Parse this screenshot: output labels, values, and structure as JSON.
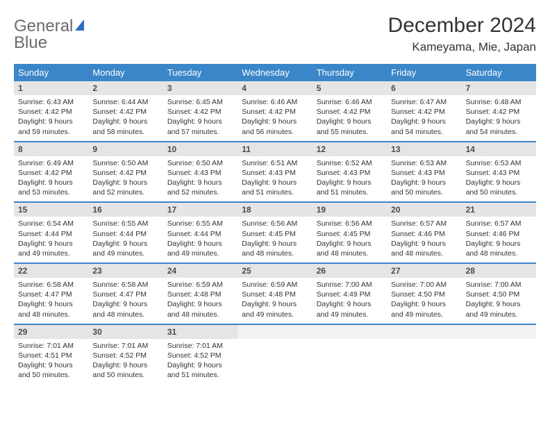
{
  "brand": {
    "word1": "General",
    "word2": "Blue",
    "sail_color": "#2b6fbd"
  },
  "header": {
    "month_title": "December 2024",
    "location": "Kameyama, Mie, Japan"
  },
  "calendar": {
    "day_headers": [
      "Sunday",
      "Monday",
      "Tuesday",
      "Wednesday",
      "Thursday",
      "Friday",
      "Saturday"
    ],
    "header_bg": "#3b86c8",
    "header_fg": "#ffffff",
    "row_border_color": "#3b86c8",
    "daynum_bg": "#e5e5e5",
    "weeks": [
      [
        {
          "day": "1",
          "sunrise": "Sunrise: 6:43 AM",
          "sunset": "Sunset: 4:42 PM",
          "daylight": "Daylight: 9 hours and 59 minutes."
        },
        {
          "day": "2",
          "sunrise": "Sunrise: 6:44 AM",
          "sunset": "Sunset: 4:42 PM",
          "daylight": "Daylight: 9 hours and 58 minutes."
        },
        {
          "day": "3",
          "sunrise": "Sunrise: 6:45 AM",
          "sunset": "Sunset: 4:42 PM",
          "daylight": "Daylight: 9 hours and 57 minutes."
        },
        {
          "day": "4",
          "sunrise": "Sunrise: 6:46 AM",
          "sunset": "Sunset: 4:42 PM",
          "daylight": "Daylight: 9 hours and 56 minutes."
        },
        {
          "day": "5",
          "sunrise": "Sunrise: 6:46 AM",
          "sunset": "Sunset: 4:42 PM",
          "daylight": "Daylight: 9 hours and 55 minutes."
        },
        {
          "day": "6",
          "sunrise": "Sunrise: 6:47 AM",
          "sunset": "Sunset: 4:42 PM",
          "daylight": "Daylight: 9 hours and 54 minutes."
        },
        {
          "day": "7",
          "sunrise": "Sunrise: 6:48 AM",
          "sunset": "Sunset: 4:42 PM",
          "daylight": "Daylight: 9 hours and 54 minutes."
        }
      ],
      [
        {
          "day": "8",
          "sunrise": "Sunrise: 6:49 AM",
          "sunset": "Sunset: 4:42 PM",
          "daylight": "Daylight: 9 hours and 53 minutes."
        },
        {
          "day": "9",
          "sunrise": "Sunrise: 6:50 AM",
          "sunset": "Sunset: 4:42 PM",
          "daylight": "Daylight: 9 hours and 52 minutes."
        },
        {
          "day": "10",
          "sunrise": "Sunrise: 6:50 AM",
          "sunset": "Sunset: 4:43 PM",
          "daylight": "Daylight: 9 hours and 52 minutes."
        },
        {
          "day": "11",
          "sunrise": "Sunrise: 6:51 AM",
          "sunset": "Sunset: 4:43 PM",
          "daylight": "Daylight: 9 hours and 51 minutes."
        },
        {
          "day": "12",
          "sunrise": "Sunrise: 6:52 AM",
          "sunset": "Sunset: 4:43 PM",
          "daylight": "Daylight: 9 hours and 51 minutes."
        },
        {
          "day": "13",
          "sunrise": "Sunrise: 6:53 AM",
          "sunset": "Sunset: 4:43 PM",
          "daylight": "Daylight: 9 hours and 50 minutes."
        },
        {
          "day": "14",
          "sunrise": "Sunrise: 6:53 AM",
          "sunset": "Sunset: 4:43 PM",
          "daylight": "Daylight: 9 hours and 50 minutes."
        }
      ],
      [
        {
          "day": "15",
          "sunrise": "Sunrise: 6:54 AM",
          "sunset": "Sunset: 4:44 PM",
          "daylight": "Daylight: 9 hours and 49 minutes."
        },
        {
          "day": "16",
          "sunrise": "Sunrise: 6:55 AM",
          "sunset": "Sunset: 4:44 PM",
          "daylight": "Daylight: 9 hours and 49 minutes."
        },
        {
          "day": "17",
          "sunrise": "Sunrise: 6:55 AM",
          "sunset": "Sunset: 4:44 PM",
          "daylight": "Daylight: 9 hours and 49 minutes."
        },
        {
          "day": "18",
          "sunrise": "Sunrise: 6:56 AM",
          "sunset": "Sunset: 4:45 PM",
          "daylight": "Daylight: 9 hours and 48 minutes."
        },
        {
          "day": "19",
          "sunrise": "Sunrise: 6:56 AM",
          "sunset": "Sunset: 4:45 PM",
          "daylight": "Daylight: 9 hours and 48 minutes."
        },
        {
          "day": "20",
          "sunrise": "Sunrise: 6:57 AM",
          "sunset": "Sunset: 4:46 PM",
          "daylight": "Daylight: 9 hours and 48 minutes."
        },
        {
          "day": "21",
          "sunrise": "Sunrise: 6:57 AM",
          "sunset": "Sunset: 4:46 PM",
          "daylight": "Daylight: 9 hours and 48 minutes."
        }
      ],
      [
        {
          "day": "22",
          "sunrise": "Sunrise: 6:58 AM",
          "sunset": "Sunset: 4:47 PM",
          "daylight": "Daylight: 9 hours and 48 minutes."
        },
        {
          "day": "23",
          "sunrise": "Sunrise: 6:58 AM",
          "sunset": "Sunset: 4:47 PM",
          "daylight": "Daylight: 9 hours and 48 minutes."
        },
        {
          "day": "24",
          "sunrise": "Sunrise: 6:59 AM",
          "sunset": "Sunset: 4:48 PM",
          "daylight": "Daylight: 9 hours and 48 minutes."
        },
        {
          "day": "25",
          "sunrise": "Sunrise: 6:59 AM",
          "sunset": "Sunset: 4:48 PM",
          "daylight": "Daylight: 9 hours and 49 minutes."
        },
        {
          "day": "26",
          "sunrise": "Sunrise: 7:00 AM",
          "sunset": "Sunset: 4:49 PM",
          "daylight": "Daylight: 9 hours and 49 minutes."
        },
        {
          "day": "27",
          "sunrise": "Sunrise: 7:00 AM",
          "sunset": "Sunset: 4:50 PM",
          "daylight": "Daylight: 9 hours and 49 minutes."
        },
        {
          "day": "28",
          "sunrise": "Sunrise: 7:00 AM",
          "sunset": "Sunset: 4:50 PM",
          "daylight": "Daylight: 9 hours and 49 minutes."
        }
      ],
      [
        {
          "day": "29",
          "sunrise": "Sunrise: 7:01 AM",
          "sunset": "Sunset: 4:51 PM",
          "daylight": "Daylight: 9 hours and 50 minutes."
        },
        {
          "day": "30",
          "sunrise": "Sunrise: 7:01 AM",
          "sunset": "Sunset: 4:52 PM",
          "daylight": "Daylight: 9 hours and 50 minutes."
        },
        {
          "day": "31",
          "sunrise": "Sunrise: 7:01 AM",
          "sunset": "Sunset: 4:52 PM",
          "daylight": "Daylight: 9 hours and 51 minutes."
        },
        null,
        null,
        null,
        null
      ]
    ]
  }
}
